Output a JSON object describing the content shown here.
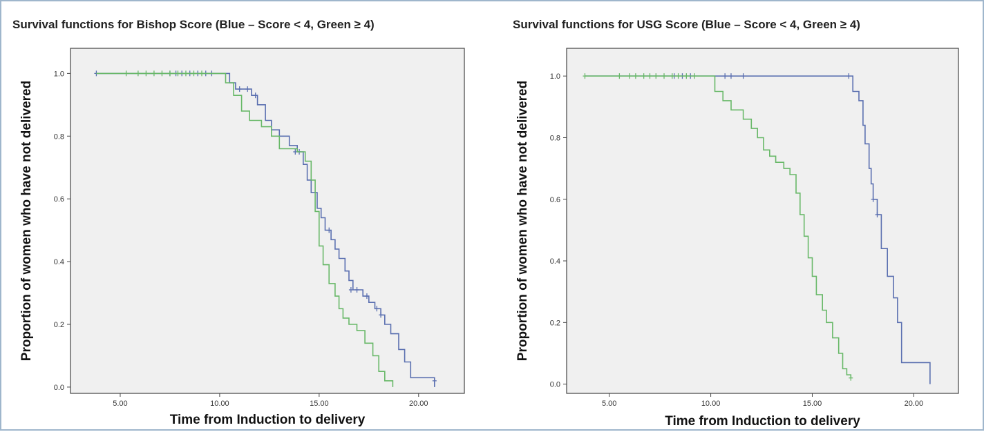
{
  "chart_data": [
    {
      "type": "line",
      "subtype": "kaplan-meier",
      "title": "Survival functions for Bishop Score (Blue – Score < 4, Green ≥ 4)",
      "xlabel": "Time from Induction to delivery",
      "ylabel": "Proportion of women who have not delivered",
      "xlim": [
        2.5,
        22.3
      ],
      "ylim": [
        -0.02,
        1.08
      ],
      "xticks": [
        5,
        10,
        15,
        20
      ],
      "xtick_labels": [
        "5.00",
        "10.00",
        "15.00",
        "20.00"
      ],
      "yticks": [
        0,
        0.2,
        0.4,
        0.6,
        0.8,
        1.0
      ],
      "ytick_labels": [
        "0.0",
        "0.2",
        "0.4",
        "0.6",
        "0.8",
        "1.0"
      ],
      "grid": false,
      "background": "#f0f0f0",
      "series": [
        {
          "color": "#5a6fb0",
          "steps": [
            [
              3.8,
              1.0
            ],
            [
              10.2,
              1.0
            ],
            [
              10.5,
              0.97
            ],
            [
              10.8,
              0.95
            ],
            [
              11.6,
              0.93
            ],
            [
              11.9,
              0.9
            ],
            [
              12.3,
              0.85
            ],
            [
              12.6,
              0.82
            ],
            [
              13.0,
              0.8
            ],
            [
              13.5,
              0.77
            ],
            [
              13.9,
              0.75
            ],
            [
              14.2,
              0.71
            ],
            [
              14.4,
              0.66
            ],
            [
              14.6,
              0.62
            ],
            [
              14.9,
              0.57
            ],
            [
              15.1,
              0.54
            ],
            [
              15.3,
              0.5
            ],
            [
              15.6,
              0.47
            ],
            [
              15.8,
              0.44
            ],
            [
              16.0,
              0.41
            ],
            [
              16.3,
              0.37
            ],
            [
              16.5,
              0.34
            ],
            [
              16.7,
              0.31
            ],
            [
              17.2,
              0.29
            ],
            [
              17.5,
              0.27
            ],
            [
              17.8,
              0.25
            ],
            [
              18.1,
              0.23
            ],
            [
              18.3,
              0.2
            ],
            [
              18.6,
              0.17
            ],
            [
              19.0,
              0.12
            ],
            [
              19.3,
              0.08
            ],
            [
              19.6,
              0.03
            ],
            [
              20.8,
              0.0
            ]
          ],
          "censored": [
            [
              3.8,
              1.0
            ],
            [
              7.5,
              1.0
            ],
            [
              7.8,
              1.0
            ],
            [
              8.1,
              1.0
            ],
            [
              8.5,
              1.0
            ],
            [
              8.9,
              1.0
            ],
            [
              9.3,
              1.0
            ],
            [
              9.6,
              1.0
            ],
            [
              11.0,
              0.95
            ],
            [
              11.4,
              0.95
            ],
            [
              11.8,
              0.93
            ],
            [
              13.8,
              0.75
            ],
            [
              14.0,
              0.75
            ],
            [
              15.5,
              0.5
            ],
            [
              16.6,
              0.31
            ],
            [
              16.9,
              0.31
            ],
            [
              17.4,
              0.29
            ],
            [
              17.9,
              0.25
            ],
            [
              18.1,
              0.23
            ],
            [
              20.8,
              0.02
            ]
          ]
        },
        {
          "color": "#68b868",
          "steps": [
            [
              3.8,
              1.0
            ],
            [
              10.0,
              1.0
            ],
            [
              10.3,
              0.97
            ],
            [
              10.7,
              0.93
            ],
            [
              11.1,
              0.88
            ],
            [
              11.5,
              0.85
            ],
            [
              12.1,
              0.83
            ],
            [
              12.6,
              0.8
            ],
            [
              13.0,
              0.76
            ],
            [
              13.9,
              0.75
            ],
            [
              14.3,
              0.72
            ],
            [
              14.6,
              0.66
            ],
            [
              14.8,
              0.56
            ],
            [
              15.0,
              0.45
            ],
            [
              15.2,
              0.39
            ],
            [
              15.5,
              0.33
            ],
            [
              15.8,
              0.29
            ],
            [
              16.0,
              0.25
            ],
            [
              16.2,
              0.22
            ],
            [
              16.5,
              0.2
            ],
            [
              16.9,
              0.18
            ],
            [
              17.3,
              0.14
            ],
            [
              17.7,
              0.1
            ],
            [
              18.0,
              0.05
            ],
            [
              18.3,
              0.02
            ],
            [
              18.7,
              0.0
            ]
          ],
          "censored": [
            [
              5.3,
              1.0
            ],
            [
              5.9,
              1.0
            ],
            [
              6.3,
              1.0
            ],
            [
              6.7,
              1.0
            ],
            [
              7.1,
              1.0
            ],
            [
              7.5,
              1.0
            ],
            [
              7.9,
              1.0
            ],
            [
              8.3,
              1.0
            ],
            [
              8.7,
              1.0
            ],
            [
              9.1,
              1.0
            ]
          ]
        }
      ]
    },
    {
      "type": "line",
      "subtype": "kaplan-meier",
      "title": "Survival functions for  USG Score (Blue – Score < 4, Green ≥ 4)",
      "xlabel": "Time from Induction to delivery",
      "ylabel": "Proportion of women who have not delivered",
      "xlim": [
        2.9,
        22.2
      ],
      "ylim": [
        -0.03,
        1.09
      ],
      "xticks": [
        5,
        10,
        15,
        20
      ],
      "xtick_labels": [
        "5.00",
        "10.00",
        "15.00",
        "20.00"
      ],
      "yticks": [
        0,
        0.2,
        0.4,
        0.6,
        0.8,
        1.0
      ],
      "ytick_labels": [
        "0.0",
        "0.2",
        "0.4",
        "0.6",
        "0.8",
        "1.0"
      ],
      "grid": false,
      "background": "#f0f0f0",
      "series": [
        {
          "color": "#5a6fb0",
          "steps": [
            [
              3.8,
              1.0
            ],
            [
              16.8,
              1.0
            ],
            [
              17.0,
              0.95
            ],
            [
              17.3,
              0.92
            ],
            [
              17.5,
              0.84
            ],
            [
              17.6,
              0.78
            ],
            [
              17.8,
              0.7
            ],
            [
              17.9,
              0.65
            ],
            [
              18.0,
              0.6
            ],
            [
              18.2,
              0.55
            ],
            [
              18.4,
              0.44
            ],
            [
              18.7,
              0.35
            ],
            [
              19.0,
              0.28
            ],
            [
              19.2,
              0.2
            ],
            [
              19.4,
              0.07
            ],
            [
              20.8,
              0.0
            ]
          ],
          "censored": [
            [
              8.2,
              1.0
            ],
            [
              8.6,
              1.0
            ],
            [
              9.0,
              1.0
            ],
            [
              10.7,
              1.0
            ],
            [
              11.0,
              1.0
            ],
            [
              11.6,
              1.0
            ],
            [
              16.8,
              1.0
            ],
            [
              18.0,
              0.6
            ],
            [
              18.2,
              0.55
            ]
          ]
        },
        {
          "color": "#68b868",
          "steps": [
            [
              3.8,
              1.0
            ],
            [
              9.9,
              1.0
            ],
            [
              10.2,
              0.95
            ],
            [
              10.6,
              0.92
            ],
            [
              11.0,
              0.89
            ],
            [
              11.6,
              0.86
            ],
            [
              12.0,
              0.83
            ],
            [
              12.3,
              0.8
            ],
            [
              12.6,
              0.76
            ],
            [
              12.9,
              0.74
            ],
            [
              13.2,
              0.72
            ],
            [
              13.6,
              0.7
            ],
            [
              13.9,
              0.68
            ],
            [
              14.2,
              0.62
            ],
            [
              14.4,
              0.55
            ],
            [
              14.6,
              0.48
            ],
            [
              14.8,
              0.41
            ],
            [
              15.0,
              0.35
            ],
            [
              15.2,
              0.29
            ],
            [
              15.5,
              0.24
            ],
            [
              15.7,
              0.2
            ],
            [
              16.0,
              0.15
            ],
            [
              16.3,
              0.1
            ],
            [
              16.5,
              0.05
            ],
            [
              16.7,
              0.03
            ],
            [
              16.9,
              0.02
            ]
          ],
          "censored": [
            [
              3.8,
              1.0
            ],
            [
              5.5,
              1.0
            ],
            [
              6.0,
              1.0
            ],
            [
              6.3,
              1.0
            ],
            [
              6.7,
              1.0
            ],
            [
              7.0,
              1.0
            ],
            [
              7.3,
              1.0
            ],
            [
              7.7,
              1.0
            ],
            [
              8.1,
              1.0
            ],
            [
              8.4,
              1.0
            ],
            [
              8.8,
              1.0
            ],
            [
              9.2,
              1.0
            ],
            [
              16.9,
              0.02
            ]
          ]
        }
      ]
    }
  ]
}
